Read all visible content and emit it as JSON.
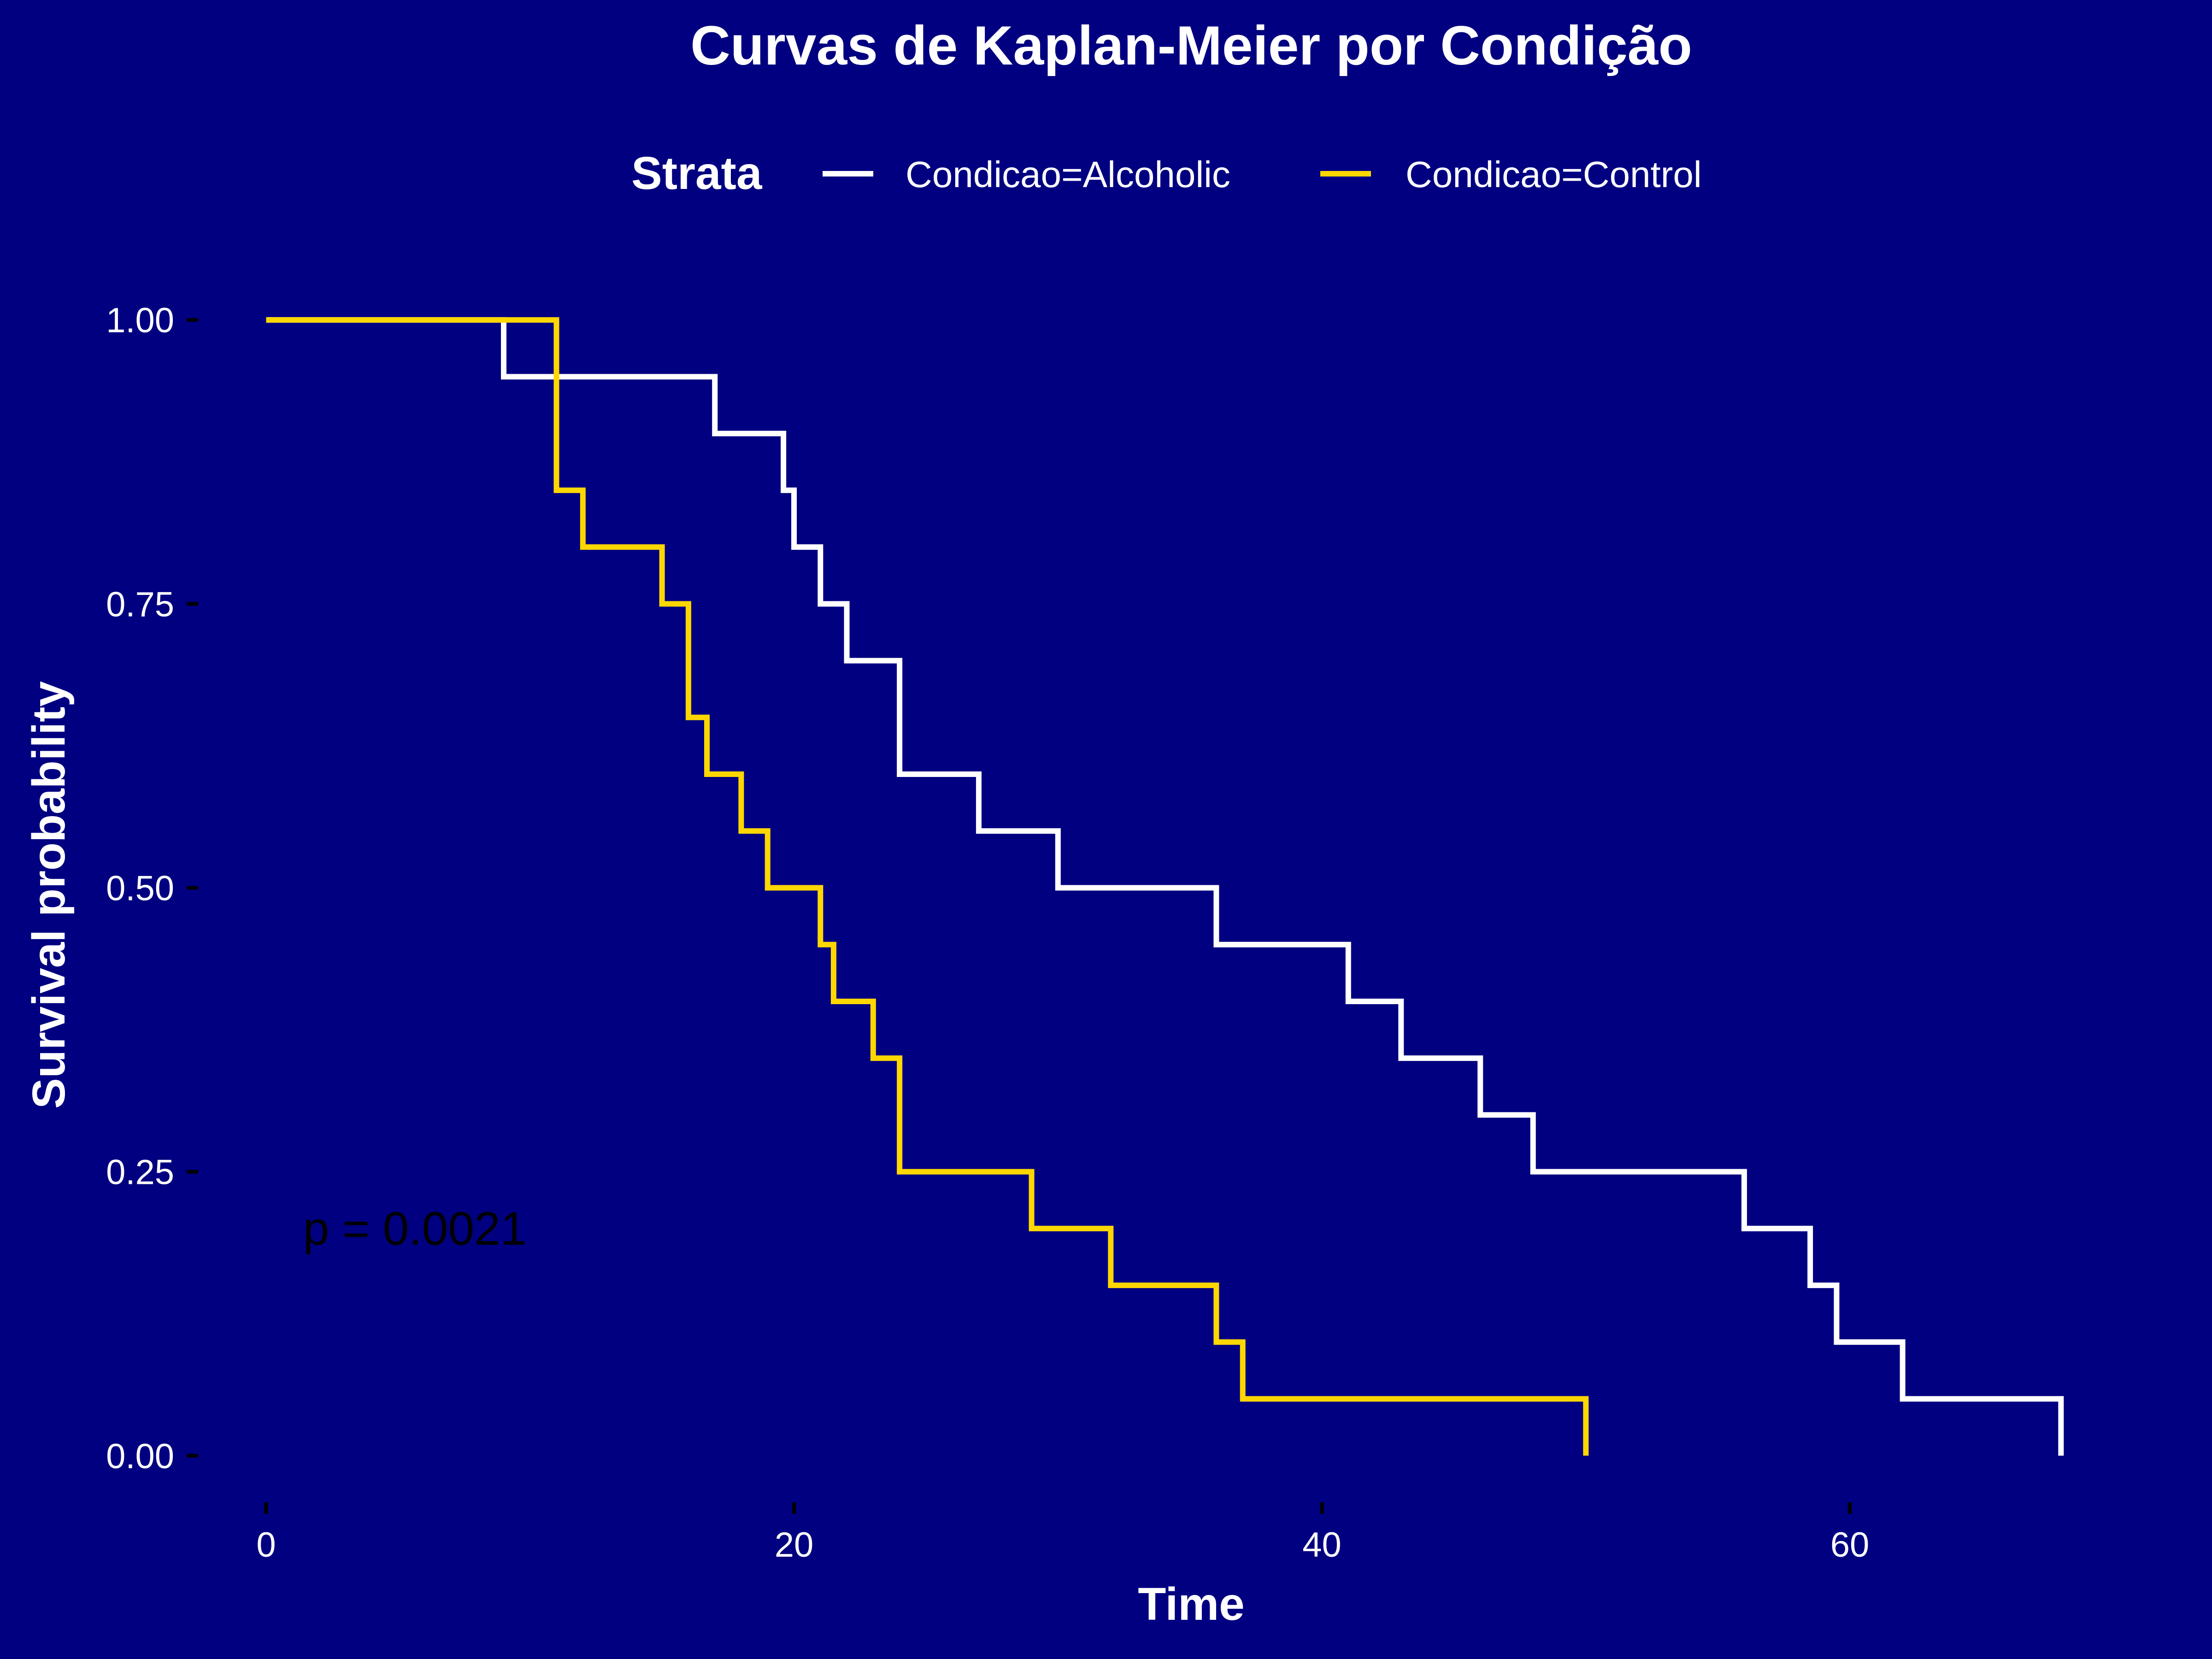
{
  "colors": {
    "background": "#000080",
    "text": "#ffffff",
    "tick": "#000000",
    "annotation": "#000000"
  },
  "chart_data": {
    "type": "line",
    "subtype": "kaplan-meier step curves",
    "title": "Curvas de Kaplan-Meier por Condição",
    "xlabel": "Time",
    "ylabel": "Survival probability",
    "xlim": [
      -3.5,
      73.6
    ],
    "ylim": [
      -0.05,
      1.05
    ],
    "x_ticks": [
      0,
      20,
      40,
      60
    ],
    "x_tick_labels": [
      "0",
      "20",
      "40",
      "60"
    ],
    "y_ticks": [
      0,
      0.25,
      0.5,
      0.75,
      1
    ],
    "y_tick_labels": [
      "0.00",
      "0.25",
      "0.50",
      "0.75",
      "1.00"
    ],
    "grid": false,
    "legend": {
      "title": "Strata",
      "position": "top"
    },
    "annotation": {
      "text": "p = 0.0021",
      "x": 1.4,
      "y": 0.2
    },
    "series": [
      {
        "name": "Condicao=Alcoholic",
        "color": "#ffffff",
        "x": [
          0,
          9,
          17,
          19.6,
          20,
          21,
          22,
          24,
          27,
          30,
          36,
          41,
          43,
          46,
          48,
          56,
          58.5,
          59.5,
          62,
          68
        ],
        "y": [
          1,
          0.95,
          0.9,
          0.85,
          0.8,
          0.75,
          0.7,
          0.6,
          0.55,
          0.5,
          0.45,
          0.4,
          0.35,
          0.3,
          0.25,
          0.2,
          0.15,
          0.1,
          0.05,
          0
        ]
      },
      {
        "name": "Condicao=Control",
        "color": "#ffd700",
        "x": [
          0,
          11,
          12,
          15,
          16,
          16.7,
          18,
          19,
          21,
          21.5,
          23,
          24,
          29,
          32,
          36,
          37,
          50
        ],
        "y": [
          1,
          0.85,
          0.8,
          0.75,
          0.65,
          0.6,
          0.55,
          0.5,
          0.45,
          0.4,
          0.35,
          0.25,
          0.2,
          0.15,
          0.1,
          0.05,
          0
        ]
      }
    ]
  }
}
